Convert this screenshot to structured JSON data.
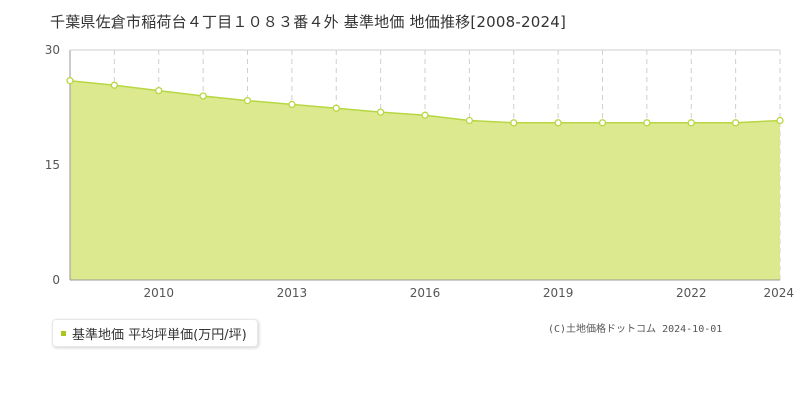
{
  "header": {
    "title": "千葉県佐倉市稲荷台４丁目１０８３番４外 基準地価 地価推移[2008-2024]"
  },
  "legend": {
    "label": "基準地価 平均坪単価(万円/坪)"
  },
  "footer": {
    "copyright": "(C)土地価格ドットコム 2024-10-01"
  },
  "colors": {
    "fill": "#dde98f",
    "line": "#b7d742",
    "marker_stroke": "#b7d742",
    "marker_fill": "#ffffff",
    "grid": "#cfcfcf",
    "axis": "#999999"
  },
  "chart_data": {
    "type": "area",
    "title": "千葉県佐倉市稲荷台４丁目１０８３番４外 基準地価 地価推移[2008-2024]",
    "x": [
      2008,
      2009,
      2010,
      2011,
      2012,
      2013,
      2014,
      2015,
      2016,
      2017,
      2018,
      2019,
      2020,
      2021,
      2022,
      2023,
      2024
    ],
    "x_tick_labels": [
      "2010",
      "2013",
      "2016",
      "2019",
      "2022",
      "2024"
    ],
    "x_ticks": [
      2010,
      2013,
      2016,
      2019,
      2022,
      2024
    ],
    "y_tick_labels": [
      "0",
      "15",
      "30"
    ],
    "y_ticks": [
      0,
      15,
      30
    ],
    "ylim": [
      0,
      30
    ],
    "xlim": [
      2008,
      2024
    ],
    "series": [
      {
        "name": "基準地価 平均坪単価(万円/坪)",
        "values": [
          26.0,
          25.4,
          24.7,
          24.0,
          23.4,
          22.9,
          22.4,
          21.9,
          21.5,
          20.8,
          20.5,
          20.5,
          20.5,
          20.5,
          20.5,
          20.5,
          20.8
        ]
      }
    ],
    "grid": true,
    "legend_position": "bottom-left"
  }
}
